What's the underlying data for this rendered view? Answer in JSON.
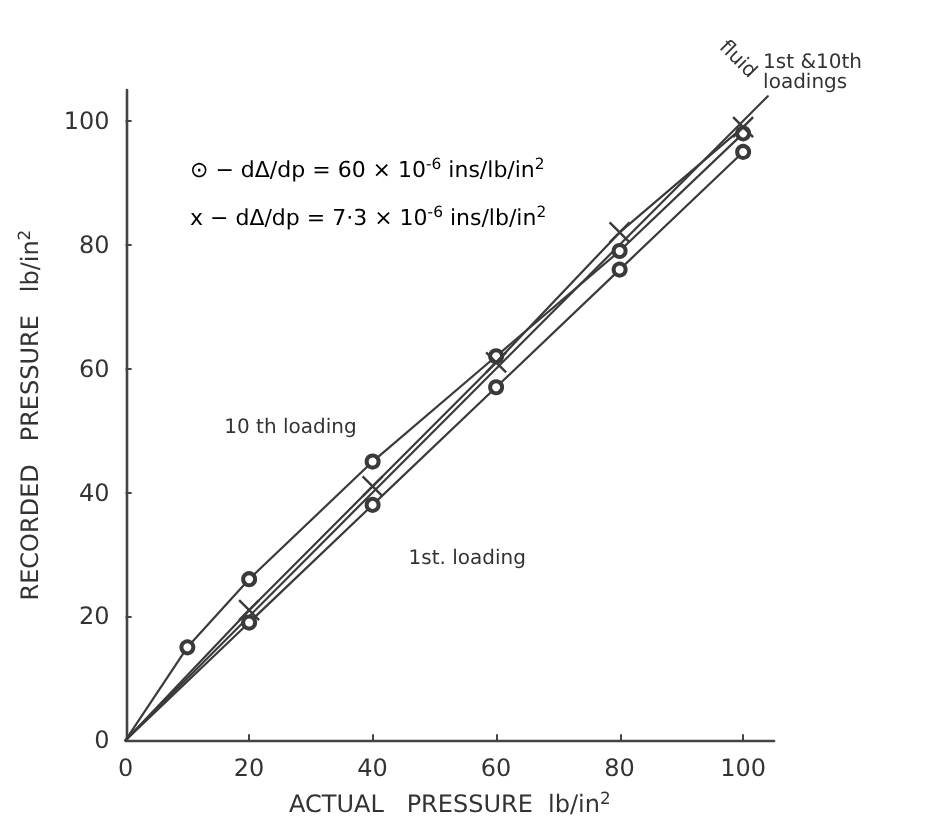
{
  "chart_data": {
    "type": "line",
    "xlabel": "ACTUAL   PRESSURE  lb/in$^{2}$",
    "ylabel": "RECORDED   PRESSURE   lb/in$^{2}$",
    "xlim": [
      0,
      105
    ],
    "ylim": [
      0,
      105
    ],
    "xticks": [
      0,
      20,
      40,
      60,
      80,
      100
    ],
    "yticks": [
      0,
      20,
      40,
      60,
      80,
      100
    ],
    "grid": false,
    "legend": false,
    "series": [
      {
        "name": "10 th loading",
        "color": "#3a3a3a",
        "marker": "circle",
        "x": [
          0,
          10,
          20,
          40,
          60,
          80,
          100
        ],
        "values": [
          0,
          15,
          26,
          45,
          62,
          79,
          98
        ]
      },
      {
        "name": "1st. loading",
        "color": "#3a3a3a",
        "marker": "circle",
        "x": [
          0,
          20,
          40,
          60,
          80,
          100
        ],
        "values": [
          0,
          19,
          38,
          57,
          76,
          95
        ]
      },
      {
        "color": "#3a3a3a",
        "marker": "cross",
        "x": [
          0,
          20,
          40,
          60,
          80,
          100
        ],
        "values": [
          0,
          21,
          41,
          61,
          82,
          99
        ]
      },
      {
        "name": "fluid",
        "color": "#3a3a3a",
        "marker": "none",
        "x": [
          0,
          104
        ],
        "values": [
          0,
          104
        ]
      }
    ],
    "annotations": [
      "⊙ − dΔ/dp = 60 × 10$^{-6}$ ins/lb/in$^{2}$",
      "x − dΔ/dp = 7·3 × 10$^{-6}$ ins/lb/in$^{2}$",
      {
        "text": "1st &10th loadings",
        "x": 100,
        "y": 98
      }
    ]
  }
}
